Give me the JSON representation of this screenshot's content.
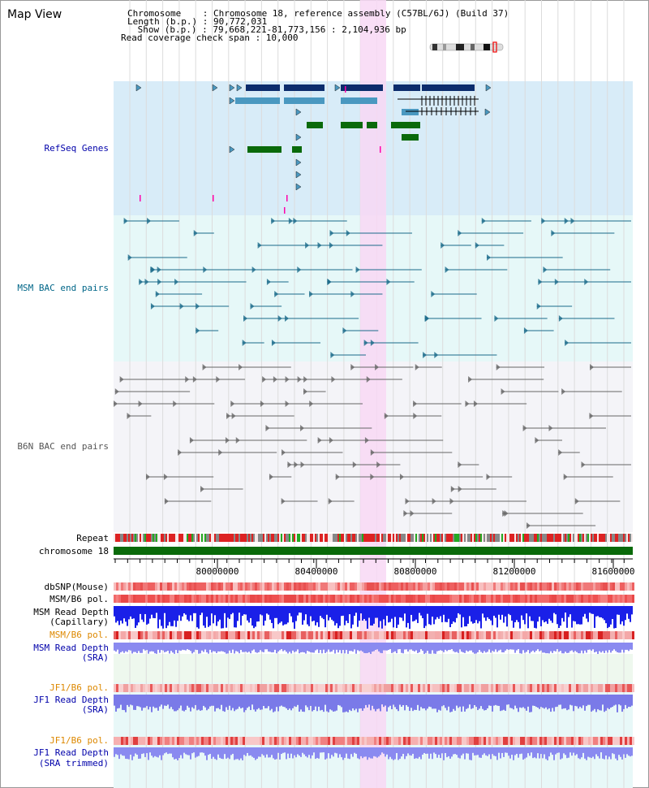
{
  "app_title": "Map View",
  "header": {
    "chromosome_line": "Chromosome    : Chromosome 18, reference assembly (C57BL/6J) (Build 37)",
    "length_line": "Length (b.p.) : 90,772,031",
    "show_line": " Show (b.p.) : 79,668,221-81,773,156 : 2,104,936 bp",
    "coverage_line": "Read coverage check span : 10,000"
  },
  "tracks": {
    "refseq": "RefSeq Genes",
    "msm_bac": "MSM BAC end pairs",
    "b6n_bac": "B6N BAC end pairs",
    "repeat": "Repeat",
    "chromosome": "chromosome 18",
    "dbsnp": "dbSNP(Mouse)",
    "msm_b6_pol_1": "MSM/B6 pol.",
    "msm_depth_cap_1": "MSM Read Depth",
    "msm_depth_cap_2": "(Capillary)",
    "msm_b6_pol_2": "MSM/B6 pol.",
    "msm_depth_sra_1": "MSM Read Depth",
    "msm_depth_sra_2": "(SRA)",
    "jf1_pol_1": "JF1/B6 pol.",
    "jf1_depth_1": "JF1 Read Depth",
    "jf1_depth_2": "(SRA)",
    "jf1_pol_2": "JF1/B6 pol.",
    "jf1_trim_1": "JF1 Read Depth",
    "jf1_trim_2": "(SRA trimmed)"
  },
  "axis": {
    "ticks": [
      "80000000",
      "80400000",
      "80800000",
      "81200000",
      "81600000"
    ]
  },
  "colors": {
    "label_blue": "#0000aa",
    "label_teal": "#006688",
    "label_orange": "#dd8800",
    "highlight": "#f8d8f4",
    "refseq_bg": "#d8ecf8",
    "msm_bg": "#e6f8f8",
    "b6n_bg": "#f4f4f8",
    "gene_dark": "#0c2c6c",
    "gene_mid": "#4a98c0",
    "gene_green": "#0a6a0a",
    "chromosome_green": "#0a6a0a"
  }
}
